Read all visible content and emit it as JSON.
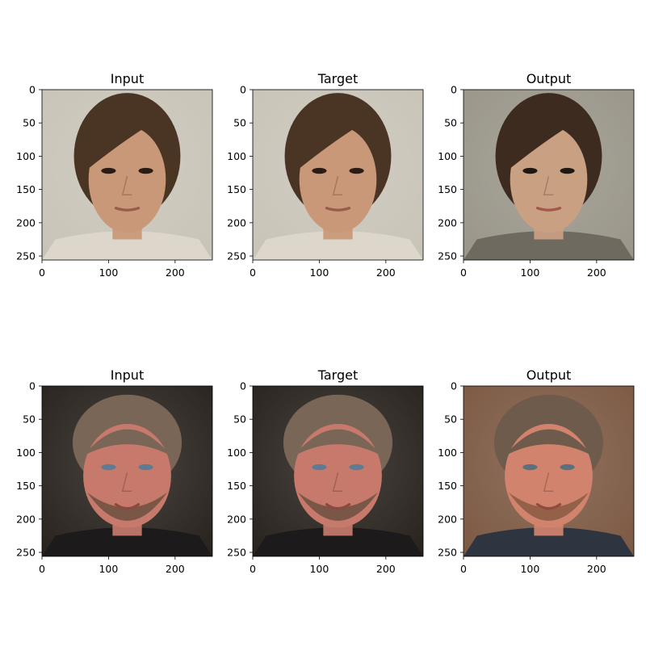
{
  "figure": {
    "background": "#ffffff",
    "axis_color": "#000000",
    "panels": [
      {
        "title": "Input",
        "face": "young-woman-brown-hair",
        "image_palette": {
          "bg": "#c9c4b8",
          "hair": "#4a3524",
          "skin": "#c99878",
          "shirt": "#dcd6cb",
          "eyes": "#2a1c14",
          "lips": "#9b5a4f"
        }
      },
      {
        "title": "Target",
        "face": "young-woman-brown-hair",
        "image_palette": {
          "bg": "#c9c4b8",
          "hair": "#4a3524",
          "skin": "#c99878",
          "shirt": "#dcd6cb",
          "eyes": "#2a1c14",
          "lips": "#9b5a4f"
        }
      },
      {
        "title": "Output",
        "face": "young-woman-brown-hair-generated",
        "image_palette": {
          "bg": "#9a968a",
          "hair": "#3d2b1f",
          "skin": "#caa083",
          "shirt": "#6f6a5f",
          "eyes": "#1f1611",
          "lips": "#a2584d"
        }
      },
      {
        "title": "Input",
        "face": "man-grey-hair-beard",
        "image_palette": {
          "bg": "#2a241f",
          "hair": "#7a6656",
          "skin": "#c77a6c",
          "shirt": "#1c1a1a",
          "eyes": "#5d7c94",
          "lips": "#8a4a40",
          "beard": "#6b5040"
        }
      },
      {
        "title": "Target",
        "face": "man-grey-hair-beard",
        "image_palette": {
          "bg": "#2a241f",
          "hair": "#7a6656",
          "skin": "#c77a6c",
          "shirt": "#1c1a1a",
          "eyes": "#5d7c94",
          "lips": "#8a4a40",
          "beard": "#6b5040"
        }
      },
      {
        "title": "Output",
        "face": "man-grey-hair-beard-generated",
        "image_palette": {
          "bg": "#7d5a44",
          "hair": "#6e5b4b",
          "skin": "#d1836e",
          "shirt": "#2e3440",
          "eyes": "#5b6f7f",
          "lips": "#8d4c3f",
          "beard": "#8a5a42"
        }
      }
    ],
    "x_ticks": [
      "0",
      "100",
      "200"
    ],
    "y_ticks": [
      "0",
      "50",
      "100",
      "150",
      "200",
      "250"
    ],
    "x_range": [
      0,
      256
    ],
    "y_range": [
      0,
      256
    ]
  }
}
